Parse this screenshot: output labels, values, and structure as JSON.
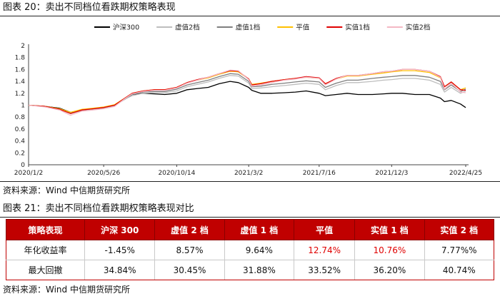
{
  "figure_title": "图表 20：卖出不同档位看跌期权策略表现",
  "source_label_1": "资料来源：Wind  中信期货研究所",
  "table_title": "图表 21：卖出不同档位看跌期权策略表现对比",
  "source_label_2": "资料来源：Wind  中信期货研究所",
  "colors": {
    "header_red": "#c00000",
    "highlight_red": "#e00000"
  },
  "chart_data": {
    "type": "line",
    "x": [
      "2020/1/2",
      "2020/2/3",
      "2020/3/2",
      "2020/3/23",
      "2020/4/14",
      "2020/5/6",
      "2020/5/26",
      "2020/6/16",
      "2020/7/6",
      "2020/7/20",
      "2020/8/10",
      "2020/9/1",
      "2020/9/21",
      "2020/10/14",
      "2020/11/3",
      "2020/11/23",
      "2020/12/14",
      "2021/1/4",
      "2021/1/25",
      "2021/2/10",
      "2021/3/2",
      "2021/3/8",
      "2021/3/25",
      "2021/4/15",
      "2021/5/10",
      "2021/5/31",
      "2021/6/21",
      "2021/7/16",
      "2021/7/28",
      "2021/8/18",
      "2021/9/8",
      "2021/9/29",
      "2021/10/27",
      "2021/11/17",
      "2021/12/3",
      "2021/12/24",
      "2022/1/17",
      "2022/2/14",
      "2022/3/7",
      "2022/3/15",
      "2022/3/28",
      "2022/4/15",
      "2022/4/25"
    ],
    "series": [
      {
        "name": "沪深300",
        "color": "#000000",
        "values": [
          1.0,
          0.98,
          0.95,
          0.88,
          0.92,
          0.94,
          0.95,
          1.0,
          1.1,
          1.18,
          1.2,
          1.19,
          1.18,
          1.2,
          1.26,
          1.28,
          1.3,
          1.36,
          1.4,
          1.38,
          1.3,
          1.25,
          1.2,
          1.2,
          1.21,
          1.22,
          1.24,
          1.2,
          1.16,
          1.18,
          1.2,
          1.18,
          1.18,
          1.19,
          1.2,
          1.2,
          1.18,
          1.18,
          1.12,
          1.06,
          1.08,
          1.02,
          0.96
        ]
      },
      {
        "name": "虚值2档",
        "color": "#bdbdbd",
        "values": [
          1.0,
          0.98,
          0.94,
          0.86,
          0.91,
          0.93,
          0.95,
          0.99,
          1.1,
          1.16,
          1.2,
          1.21,
          1.21,
          1.24,
          1.31,
          1.35,
          1.39,
          1.45,
          1.5,
          1.49,
          1.37,
          1.28,
          1.29,
          1.31,
          1.33,
          1.35,
          1.37,
          1.35,
          1.26,
          1.33,
          1.38,
          1.38,
          1.4,
          1.42,
          1.43,
          1.45,
          1.45,
          1.42,
          1.35,
          1.22,
          1.3,
          1.2,
          1.24
        ]
      },
      {
        "name": "虚值1档",
        "color": "#7f7f7f",
        "values": [
          1.0,
          0.98,
          0.94,
          0.87,
          0.92,
          0.94,
          0.96,
          1.0,
          1.11,
          1.18,
          1.22,
          1.23,
          1.23,
          1.27,
          1.34,
          1.38,
          1.42,
          1.48,
          1.53,
          1.52,
          1.4,
          1.31,
          1.32,
          1.35,
          1.37,
          1.39,
          1.41,
          1.39,
          1.3,
          1.37,
          1.42,
          1.42,
          1.45,
          1.47,
          1.48,
          1.5,
          1.5,
          1.47,
          1.4,
          1.26,
          1.34,
          1.23,
          1.27
        ]
      },
      {
        "name": "平值",
        "color": "#ffc000",
        "values": [
          1.0,
          0.98,
          0.94,
          0.88,
          0.93,
          0.95,
          0.97,
          1.01,
          1.12,
          1.2,
          1.24,
          1.26,
          1.26,
          1.3,
          1.38,
          1.42,
          1.46,
          1.52,
          1.57,
          1.56,
          1.44,
          1.35,
          1.37,
          1.4,
          1.43,
          1.45,
          1.47,
          1.45,
          1.36,
          1.44,
          1.49,
          1.49,
          1.52,
          1.54,
          1.56,
          1.58,
          1.58,
          1.55,
          1.46,
          1.31,
          1.39,
          1.26,
          1.29
        ]
      },
      {
        "name": "实值1档",
        "color": "#e00000",
        "values": [
          1.0,
          0.98,
          0.93,
          0.86,
          0.92,
          0.94,
          0.96,
          1.0,
          1.12,
          1.2,
          1.24,
          1.26,
          1.26,
          1.3,
          1.38,
          1.43,
          1.47,
          1.53,
          1.58,
          1.57,
          1.44,
          1.34,
          1.36,
          1.4,
          1.43,
          1.45,
          1.48,
          1.46,
          1.36,
          1.45,
          1.5,
          1.5,
          1.53,
          1.56,
          1.57,
          1.6,
          1.6,
          1.57,
          1.48,
          1.31,
          1.39,
          1.26,
          1.25
        ]
      },
      {
        "name": "实值2档",
        "color": "#f4b8c4",
        "values": [
          1.0,
          0.97,
          0.92,
          0.83,
          0.9,
          0.92,
          0.94,
          0.98,
          1.11,
          1.19,
          1.23,
          1.25,
          1.25,
          1.29,
          1.37,
          1.42,
          1.47,
          1.53,
          1.59,
          1.58,
          1.43,
          1.32,
          1.34,
          1.38,
          1.42,
          1.44,
          1.47,
          1.45,
          1.34,
          1.44,
          1.5,
          1.5,
          1.53,
          1.56,
          1.57,
          1.6,
          1.6,
          1.57,
          1.47,
          1.27,
          1.37,
          1.22,
          1.21
        ]
      }
    ],
    "x_ticks": [
      "2020/1/2",
      "2020/5/26",
      "2020/10/14",
      "2021/3/2",
      "2021/7/16",
      "2021/12/3",
      "2022/4/25"
    ],
    "y_ticks": [
      "0",
      "0.2",
      "0.4",
      "0.6",
      "0.8",
      "1",
      "1.2",
      "1.4",
      "1.6",
      "1.8",
      "2"
    ],
    "ylim": [
      0,
      2
    ],
    "grid": false,
    "legend_position": "top"
  },
  "table": {
    "headers": [
      "策略表现",
      "沪深 300",
      "虚值 2 档",
      "虚值 1 档",
      "平值",
      "实值 1 档",
      "实值 2 档"
    ],
    "rows": [
      {
        "label": "年化收益率",
        "cells": [
          "-1.45%",
          "8.57%",
          "9.64%",
          "12.74%",
          "10.76%",
          "7.77%%"
        ]
      },
      {
        "label": "最大回撤",
        "cells": [
          "34.84%",
          "30.45%",
          "31.88%",
          "33.52%",
          "36.20%",
          "40.74%"
        ]
      }
    ]
  }
}
